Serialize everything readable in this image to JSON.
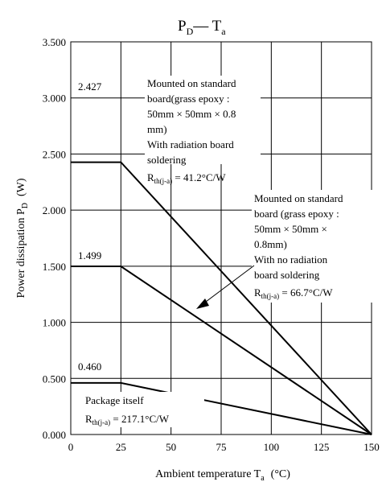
{
  "chart_data": {
    "type": "line",
    "title_main": "P",
    "title_sub1": "D",
    "title_sep": "— T",
    "title_sub2": "a",
    "xlabel_main": "Ambient temperature  T",
    "xlabel_sub": "a",
    "xlabel_unit": "(°C)",
    "ylabel_main": "Power dissipation  P",
    "ylabel_sub": "D",
    "ylabel_unit": "(W)",
    "xlim": [
      0,
      150
    ],
    "ylim": [
      0,
      3.5
    ],
    "x_ticks": [
      {
        "value": 0,
        "label": "0"
      },
      {
        "value": 25,
        "label": "25"
      },
      {
        "value": 50,
        "label": "50"
      },
      {
        "value": 75,
        "label": "75"
      },
      {
        "value": 100,
        "label": "100"
      },
      {
        "value": 125,
        "label": "125"
      },
      {
        "value": 150,
        "label": "150"
      }
    ],
    "y_ticks": [
      {
        "value": 0,
        "label": "0.000"
      },
      {
        "value": 0.5,
        "label": "0.500"
      },
      {
        "value": 1.0,
        "label": "1.000"
      },
      {
        "value": 1.5,
        "label": "1.500"
      },
      {
        "value": 2.0,
        "label": "2.000"
      },
      {
        "value": 2.5,
        "label": "2.500"
      },
      {
        "value": 3.0,
        "label": "3.000"
      },
      {
        "value": 3.5,
        "label": "3.500"
      }
    ],
    "grid": true,
    "series": [
      {
        "x": [
          0,
          25,
          150
        ],
        "y": [
          2.427,
          2.427,
          0
        ]
      },
      {
        "x": [
          0,
          25,
          150
        ],
        "y": [
          1.499,
          1.499,
          0
        ]
      },
      {
        "x": [
          0,
          25,
          150
        ],
        "y": [
          0.46,
          0.46,
          0
        ]
      }
    ],
    "value_labels": [
      "2.427",
      "1.499",
      "0.460"
    ],
    "annotations": {
      "a1": {
        "lines": [
          "Mounted on standard",
          "board(grass epoxy :",
          "50mm × 50mm × 0.8",
          "mm)",
          "With radiation board",
          "soldering"
        ],
        "r_main": "R",
        "r_sub": "th(j-a)",
        "r_value": " = 41.2°C/W"
      },
      "a2": {
        "lines": [
          "Mounted on standard",
          "board (grass epoxy :",
          "50mm × 50mm ×",
          "0.8mm)",
          "With no radiation",
          "board soldering"
        ],
        "r_main": "R",
        "r_sub": "th(j-a)",
        "r_value": " = 66.7°C/W"
      },
      "a3": {
        "lines": [
          "Package itself"
        ],
        "r_main": "R",
        "r_sub": "th(j-a)",
        "r_value": " = 217.1°C/W"
      }
    }
  }
}
